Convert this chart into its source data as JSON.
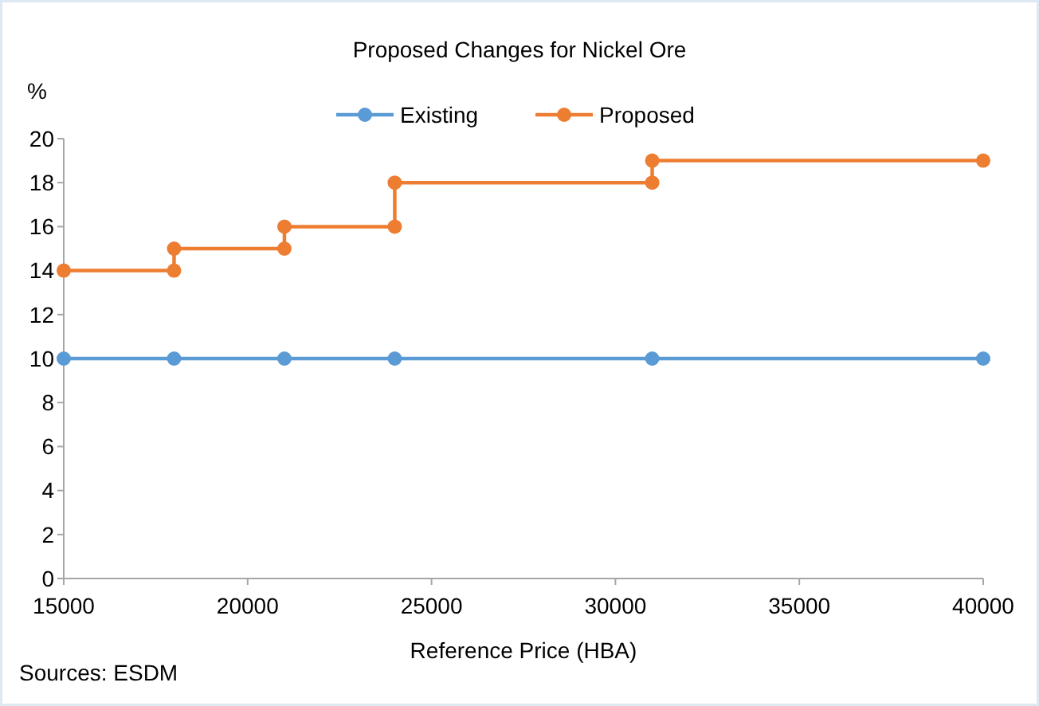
{
  "chart_data": {
    "type": "line",
    "title": "Proposed Changes for Nickel Ore",
    "xlabel": "Reference Price (HBA)",
    "ylabel": "%",
    "annotations": [
      "Sources: ESDM"
    ],
    "series": [
      {
        "name": "Existing",
        "color": "#5b9bd5",
        "x": [
          15000,
          18000,
          21000,
          24000,
          31000,
          40000
        ],
        "values": [
          10,
          10,
          10,
          10,
          10,
          10
        ]
      },
      {
        "name": "Proposed",
        "color": "#ed7d31",
        "x": [
          15000,
          18000,
          18000,
          21000,
          21000,
          24000,
          24000,
          31000,
          31000,
          40000
        ],
        "values": [
          14,
          14,
          15,
          15,
          16,
          16,
          18,
          18,
          19,
          19
        ]
      }
    ],
    "xlim": [
      15000,
      40000
    ],
    "xticks": [
      15000,
      20000,
      25000,
      30000,
      35000,
      40000
    ],
    "ylim": [
      0,
      20
    ],
    "yticks": [
      0,
      2,
      4,
      6,
      8,
      10,
      12,
      14,
      16,
      18,
      20
    ],
    "legend": "top",
    "marker": "circle",
    "line_style": "solid",
    "grid": false
  }
}
